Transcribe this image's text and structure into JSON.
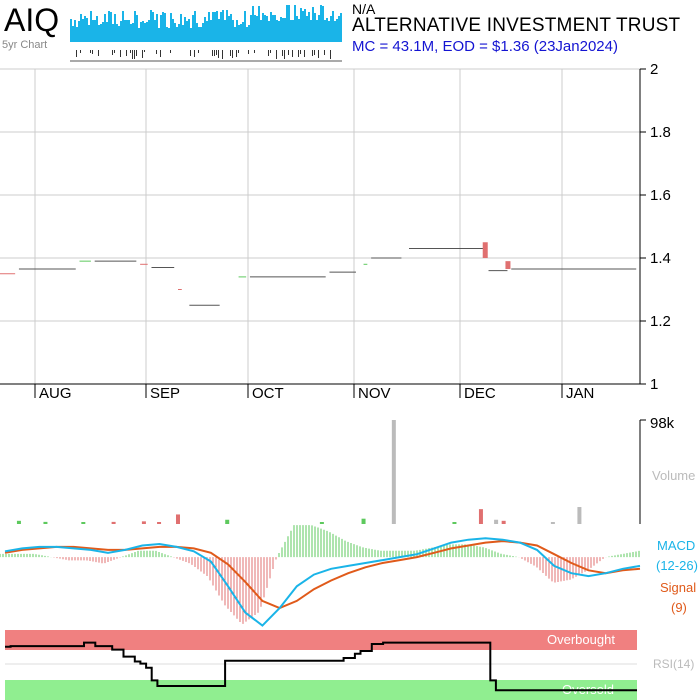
{
  "header": {
    "ticker": "AIQ",
    "sparkline_label": "5yr Chart",
    "status": "N/A",
    "company": "ALTERNATIVE INVESTMENT TRUST",
    "summary": "MC = 43.1M, EOD = $1.36 (23Jan2024)"
  },
  "colors": {
    "up": "#5dc95d",
    "down": "#e07070",
    "macd": "#1ab4e8",
    "signal": "#e05a1a",
    "volume_grey": "#bbbbbb",
    "overbought": "#f08080",
    "oversold": "#90ee90",
    "summary_blue": "#1414d2"
  },
  "chart_data": [
    {
      "type": "line",
      "name": "price",
      "y_ticks": [
        "2",
        "1.8",
        "1.6",
        "1.4",
        "1.2",
        "1"
      ],
      "ylim": [
        1,
        2
      ],
      "month_labels": [
        "AUG",
        "SEP",
        "OCT",
        "NOV",
        "DEC",
        "JAN"
      ],
      "segments": [
        {
          "start": 0,
          "end": 4,
          "value": 1.35,
          "color": "down"
        },
        {
          "start": 5,
          "end": 20,
          "value": 1.365,
          "color": "neutral"
        },
        {
          "start": 21,
          "end": 24,
          "value": 1.39,
          "color": "up"
        },
        {
          "start": 25,
          "end": 36,
          "value": 1.39,
          "color": "neutral"
        },
        {
          "start": 37,
          "end": 39,
          "value": 1.38,
          "color": "down"
        },
        {
          "start": 40,
          "end": 46,
          "value": 1.37,
          "color": "neutral"
        },
        {
          "start": 47,
          "end": 48,
          "value": 1.3,
          "color": "down"
        },
        {
          "start": 50,
          "end": 58,
          "value": 1.25,
          "color": "neutral"
        },
        {
          "start": 63,
          "end": 65,
          "value": 1.34,
          "color": "up"
        },
        {
          "start": 66,
          "end": 86,
          "value": 1.34,
          "color": "neutral"
        },
        {
          "start": 87,
          "end": 94,
          "value": 1.355,
          "color": "neutral"
        },
        {
          "start": 96,
          "end": 97,
          "value": 1.38,
          "color": "up"
        },
        {
          "start": 98,
          "end": 106,
          "value": 1.4,
          "color": "neutral"
        },
        {
          "start": 108,
          "end": 128,
          "value": 1.43,
          "color": "neutral"
        },
        {
          "start": 129,
          "end": 134,
          "value": 1.36,
          "color": "neutral"
        },
        {
          "start": 135,
          "end": 168,
          "value": 1.365,
          "color": "neutral"
        }
      ],
      "candles": [
        {
          "x": 128,
          "open": 1.45,
          "close": 1.4,
          "color": "down"
        },
        {
          "x": 134,
          "open": 1.39,
          "close": 1.365,
          "color": "down"
        }
      ]
    },
    {
      "type": "bar",
      "name": "volume",
      "y_tick": "98k",
      "label": "Volume",
      "ylim": [
        0,
        98000
      ],
      "bars": [
        {
          "x": 5,
          "v": 3000,
          "color": "up"
        },
        {
          "x": 12,
          "v": 2000,
          "color": "up"
        },
        {
          "x": 22,
          "v": 1500,
          "color": "up"
        },
        {
          "x": 30,
          "v": 2000,
          "color": "down"
        },
        {
          "x": 38,
          "v": 2500,
          "color": "down"
        },
        {
          "x": 42,
          "v": 1500,
          "color": "down"
        },
        {
          "x": 47,
          "v": 9000,
          "color": "down"
        },
        {
          "x": 60,
          "v": 4000,
          "color": "up"
        },
        {
          "x": 85,
          "v": 1500,
          "color": "up"
        },
        {
          "x": 96,
          "v": 5000,
          "color": "up"
        },
        {
          "x": 104,
          "v": 98000,
          "color": "grey"
        },
        {
          "x": 120,
          "v": 1500,
          "color": "up"
        },
        {
          "x": 127,
          "v": 14000,
          "color": "down"
        },
        {
          "x": 131,
          "v": 4000,
          "color": "grey"
        },
        {
          "x": 133,
          "v": 3000,
          "color": "down"
        },
        {
          "x": 153,
          "v": 16000,
          "color": "grey"
        },
        {
          "x": 146,
          "v": 1500,
          "color": "grey"
        }
      ]
    },
    {
      "type": "line",
      "name": "macd",
      "label_macd": "MACD",
      "label_params": "(12-26)",
      "label_signal": "Signal",
      "label_signal_param": "(9)",
      "ylim": [
        -0.05,
        0.02
      ],
      "macd": [
        0.004,
        0.006,
        0.007,
        0.007,
        0.006,
        0.005,
        0.003,
        0.005,
        0.008,
        0.009,
        0.007,
        0.004,
        -0.003,
        -0.02,
        -0.038,
        -0.047,
        -0.035,
        -0.02,
        -0.012,
        -0.008,
        -0.006,
        -0.004,
        -0.002,
        0.0,
        0.002,
        0.006,
        0.01,
        0.012,
        0.013,
        0.012,
        0.01,
        0.005,
        -0.006,
        -0.011,
        -0.013,
        -0.011,
        -0.008,
        -0.006
      ],
      "signal": [
        0.003,
        0.005,
        0.006,
        0.007,
        0.007,
        0.006,
        0.005,
        0.005,
        0.006,
        0.007,
        0.007,
        0.006,
        0.003,
        -0.005,
        -0.017,
        -0.03,
        -0.035,
        -0.03,
        -0.022,
        -0.016,
        -0.011,
        -0.007,
        -0.004,
        -0.002,
        0.0,
        0.003,
        0.006,
        0.008,
        0.01,
        0.011,
        0.01,
        0.008,
        0.002,
        -0.004,
        -0.009,
        -0.011,
        -0.009,
        -0.008
      ]
    },
    {
      "type": "line",
      "name": "rsi",
      "label": "RSI(14)",
      "overbought_label": "Overbought",
      "oversold_label": "Oversold",
      "ylim": [
        0,
        100
      ],
      "values": [
        76,
        77,
        77,
        77,
        77,
        77,
        77,
        77,
        77,
        77,
        77,
        77,
        77,
        77,
        82,
        82,
        77,
        77,
        77,
        72,
        72,
        62,
        62,
        55,
        52,
        46,
        28,
        20,
        20,
        20,
        20,
        20,
        20,
        20,
        20,
        20,
        20,
        20,
        20,
        56,
        56,
        56,
        56,
        56,
        56,
        56,
        56,
        56,
        56,
        56,
        56,
        56,
        56,
        56,
        56,
        56,
        56,
        56,
        56,
        56,
        60,
        60,
        66,
        70,
        70,
        80,
        80,
        82,
        82,
        82,
        82,
        82,
        82,
        82,
        82,
        82,
        82,
        82,
        82,
        82,
        82,
        82,
        82,
        82,
        82,
        82,
        28,
        14,
        14,
        14,
        14,
        14,
        14,
        14,
        14,
        14,
        14,
        14,
        14,
        14,
        14,
        14,
        14,
        14,
        14,
        14,
        14,
        14,
        14,
        14,
        14,
        14,
        14
      ]
    }
  ]
}
